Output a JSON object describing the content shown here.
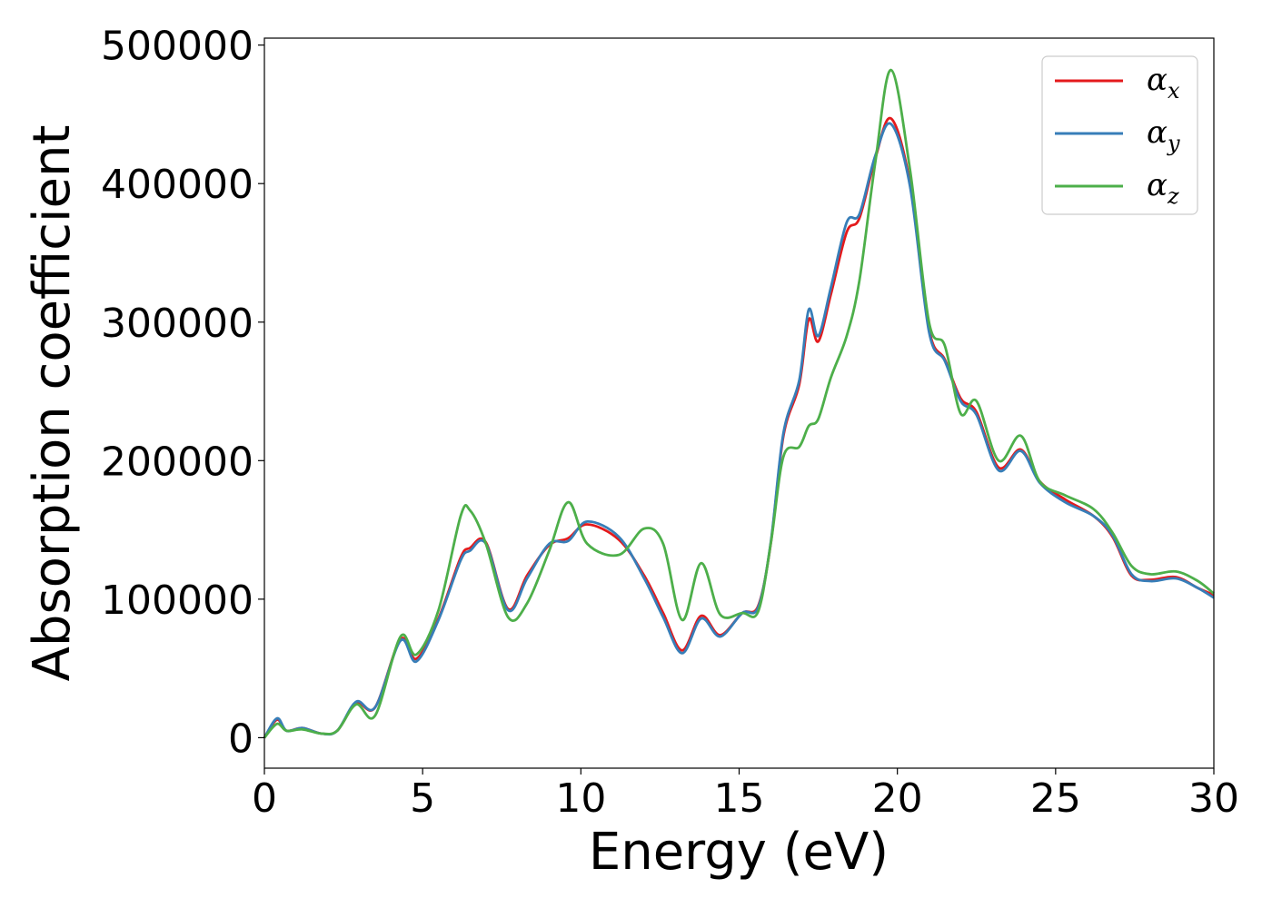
{
  "chart_data": {
    "type": "line",
    "title": "",
    "xlabel": "Energy (eV)",
    "ylabel": "Absorption coefficient",
    "xlim": [
      0,
      30
    ],
    "ylim": [
      -22000,
      505000
    ],
    "xticks": [
      0,
      5,
      10,
      15,
      20,
      25,
      30
    ],
    "xtick_labels": [
      "0",
      "5",
      "10",
      "15",
      "20",
      "25",
      "30"
    ],
    "yticks": [
      0,
      100000,
      200000,
      300000,
      400000,
      500000
    ],
    "ytick_labels": [
      "0",
      "100000",
      "200000",
      "300000",
      "400000",
      "500000"
    ],
    "grid": false,
    "legend_position": "top-right",
    "x": [
      0,
      0.4,
      0.7,
      1.2,
      1.8,
      2.3,
      2.9,
      3.5,
      4.3,
      4.8,
      5.5,
      6.2,
      6.5,
      7.0,
      7.7,
      8.3,
      9.0,
      9.6,
      10.2,
      11.2,
      12.0,
      12.6,
      13.2,
      13.8,
      14.4,
      15.1,
      15.6,
      16.0,
      16.4,
      16.9,
      17.2,
      17.5,
      17.9,
      18.4,
      18.8,
      19.3,
      19.8,
      20.4,
      21.0,
      21.5,
      22.0,
      22.5,
      23.2,
      23.9,
      24.5,
      25.3,
      26.2,
      26.8,
      27.4,
      28.0,
      28.8,
      29.5,
      30.0
    ],
    "series": [
      {
        "name": "α_x",
        "label_main": "α",
        "label_sub": "x",
        "color": "#e41a1c",
        "values": [
          0,
          13000,
          5000,
          7000,
          3000,
          5000,
          25000,
          22000,
          71000,
          57000,
          86000,
          130000,
          137000,
          141000,
          93000,
          117000,
          139000,
          144000,
          154000,
          143000,
          117000,
          90000,
          63000,
          88000,
          74000,
          90000,
          95000,
          140000,
          218000,
          255000,
          302000,
          286000,
          320000,
          365000,
          375000,
          418000,
          447000,
          400000,
          295000,
          273000,
          245000,
          235000,
          195000,
          208000,
          185000,
          172000,
          160000,
          145000,
          117000,
          114000,
          116000,
          108000,
          103000
        ]
      },
      {
        "name": "α_y",
        "label_main": "α",
        "label_sub": "y",
        "color": "#377eb8",
        "values": [
          0,
          14000,
          5000,
          7000,
          3000,
          5000,
          26000,
          22000,
          70000,
          55000,
          85000,
          128000,
          135000,
          140000,
          92000,
          115000,
          140000,
          142000,
          156000,
          145000,
          115000,
          87000,
          61000,
          86000,
          73000,
          90000,
          94000,
          141000,
          220000,
          258000,
          309000,
          290000,
          325000,
          372000,
          378000,
          420000,
          443000,
          398000,
          293000,
          272000,
          243000,
          233000,
          193000,
          207000,
          184000,
          170000,
          160000,
          146000,
          118000,
          113000,
          115000,
          108000,
          101000
        ]
      },
      {
        "name": "α_z",
        "label_main": "α",
        "label_sub": "z",
        "color": "#4daf4a",
        "values": [
          0,
          10000,
          5000,
          6000,
          3000,
          5000,
          24000,
          16000,
          73000,
          60000,
          92000,
          160000,
          164000,
          140000,
          87000,
          97000,
          135000,
          170000,
          140000,
          132000,
          151000,
          140000,
          85000,
          126000,
          89000,
          90000,
          91000,
          140000,
          203000,
          210000,
          225000,
          230000,
          260000,
          290000,
          330000,
          415000,
          482000,
          410000,
          300000,
          283000,
          234000,
          243000,
          200000,
          218000,
          185000,
          175000,
          165000,
          148000,
          124000,
          118000,
          120000,
          113000,
          104000
        ]
      }
    ]
  }
}
